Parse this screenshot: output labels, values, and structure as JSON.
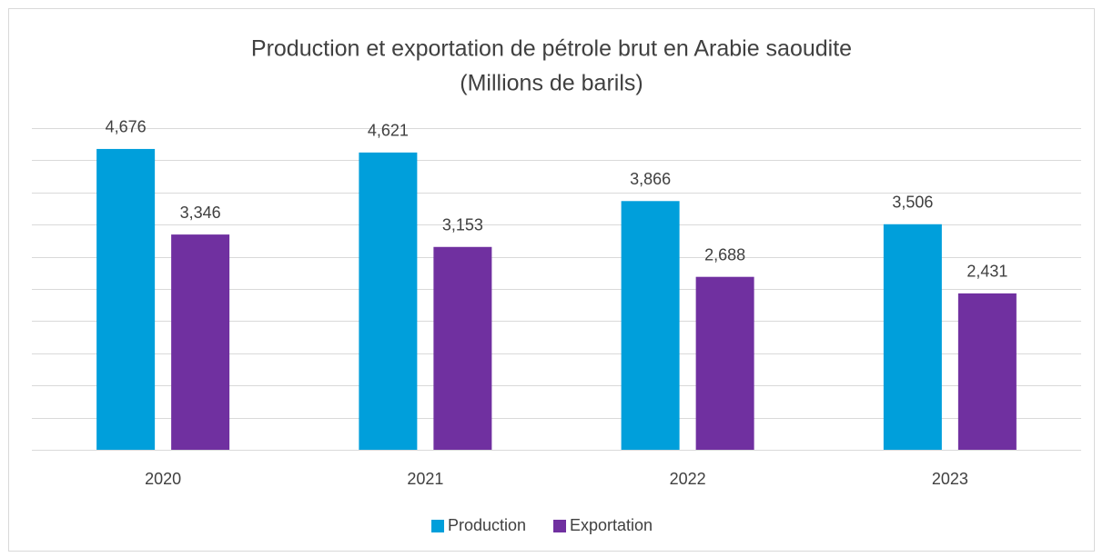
{
  "chart_data": {
    "type": "bar",
    "title": [
      "Production et exportation de pétrole brut en Arabie saoudite",
      "(Millions de barils)"
    ],
    "categories": [
      "2020",
      "2021",
      "2022",
      "2023"
    ],
    "series": [
      {
        "name": "Production",
        "color": "#009fdb",
        "values": [
          4676,
          4621,
          3866,
          3506
        ],
        "value_labels": [
          "4,676",
          "4,621",
          "3,866",
          "3,506"
        ]
      },
      {
        "name": "Exportation",
        "color": "#7030a0",
        "values": [
          3346,
          3153,
          2688,
          2431
        ],
        "value_labels": [
          "3,346",
          "3,153",
          "2,688",
          "2,431"
        ]
      }
    ],
    "ylim": [
      0,
      5000
    ],
    "yticks": [
      0,
      500,
      1000,
      1500,
      2000,
      2500,
      3000,
      3500,
      4000,
      4500,
      5000
    ],
    "grid": true,
    "legend": "bottom"
  }
}
